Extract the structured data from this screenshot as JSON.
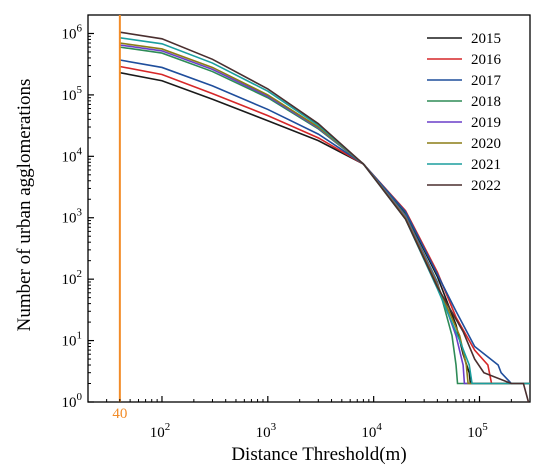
{
  "chart_data": {
    "type": "line",
    "xlabel": "Distance Threshold(m)",
    "ylabel": "Number of urban agglomerations",
    "x_scale": "log",
    "y_scale": "log",
    "xlim": [
      20,
      300000
    ],
    "ylim": [
      1,
      2000000
    ],
    "x_ticks": [
      {
        "value": 100,
        "base": "10",
        "exp": "2"
      },
      {
        "value": 1000,
        "base": "10",
        "exp": "3"
      },
      {
        "value": 10000,
        "base": "10",
        "exp": "4"
      },
      {
        "value": 100000,
        "base": "10",
        "exp": "5"
      }
    ],
    "y_ticks": [
      {
        "value": 1,
        "base": "10",
        "exp": "0"
      },
      {
        "value": 10,
        "base": "10",
        "exp": "1"
      },
      {
        "value": 100,
        "base": "10",
        "exp": "2"
      },
      {
        "value": 1000,
        "base": "10",
        "exp": "3"
      },
      {
        "value": 10000,
        "base": "10",
        "exp": "4"
      },
      {
        "value": 100000,
        "base": "10",
        "exp": "5"
      },
      {
        "value": 1000000,
        "base": "10",
        "exp": "6"
      }
    ],
    "marker": {
      "x": 40,
      "label": "40",
      "color": "#f28c28"
    },
    "grid": false,
    "legend_position": "top-right",
    "series": [
      {
        "name": "2015",
        "color": "#1a1a1a",
        "points": [
          [
            40,
            230000
          ],
          [
            100,
            170000
          ],
          [
            300,
            85000
          ],
          [
            1000,
            38000
          ],
          [
            3000,
            18000
          ],
          [
            8000,
            7500
          ],
          [
            20000,
            1200
          ],
          [
            40000,
            110
          ],
          [
            60000,
            18
          ],
          [
            70000,
            6
          ],
          [
            80000,
            3
          ],
          [
            82000,
            2
          ],
          [
            300000,
            2
          ]
        ]
      },
      {
        "name": "2016",
        "color": "#d62728",
        "points": [
          [
            40,
            290000
          ],
          [
            100,
            215000
          ],
          [
            300,
            105000
          ],
          [
            1000,
            46000
          ],
          [
            3000,
            20000
          ],
          [
            8000,
            7500
          ],
          [
            20000,
            1300
          ],
          [
            40000,
            130
          ],
          [
            60000,
            24
          ],
          [
            90000,
            7
          ],
          [
            120000,
            4
          ],
          [
            130000,
            2
          ],
          [
            300000,
            2
          ]
        ]
      },
      {
        "name": "2017",
        "color": "#1f4e9c",
        "points": [
          [
            40,
            370000
          ],
          [
            100,
            280000
          ],
          [
            300,
            140000
          ],
          [
            1000,
            58000
          ],
          [
            3000,
            23000
          ],
          [
            8000,
            7500
          ],
          [
            20000,
            1250
          ],
          [
            40000,
            120
          ],
          [
            60000,
            30
          ],
          [
            90000,
            8
          ],
          [
            150000,
            4
          ],
          [
            160000,
            3
          ],
          [
            200000,
            2
          ],
          [
            300000,
            2
          ]
        ]
      },
      {
        "name": "2018",
        "color": "#2e8b57",
        "points": [
          [
            40,
            600000
          ],
          [
            100,
            480000
          ],
          [
            300,
            240000
          ],
          [
            1000,
            90000
          ],
          [
            3000,
            28000
          ],
          [
            8000,
            7500
          ],
          [
            20000,
            1100
          ],
          [
            40000,
            90
          ],
          [
            55000,
            12
          ],
          [
            60000,
            4
          ],
          [
            62000,
            2
          ],
          [
            300000,
            2
          ]
        ]
      },
      {
        "name": "2019",
        "color": "#6a3fc9",
        "points": [
          [
            40,
            650000
          ],
          [
            100,
            520000
          ],
          [
            300,
            260000
          ],
          [
            1000,
            95000
          ],
          [
            3000,
            29000
          ],
          [
            8000,
            7500
          ],
          [
            20000,
            1050
          ],
          [
            40000,
            85
          ],
          [
            60000,
            12
          ],
          [
            70000,
            4
          ],
          [
            72000,
            2
          ],
          [
            300000,
            2
          ]
        ]
      },
      {
        "name": "2020",
        "color": "#8b7d16",
        "points": [
          [
            40,
            700000
          ],
          [
            100,
            560000
          ],
          [
            300,
            280000
          ],
          [
            1000,
            100000
          ],
          [
            3000,
            30000
          ],
          [
            8000,
            7500
          ],
          [
            20000,
            1000
          ],
          [
            40000,
            80
          ],
          [
            65000,
            12
          ],
          [
            75000,
            4
          ],
          [
            78000,
            2
          ],
          [
            300000,
            2
          ]
        ]
      },
      {
        "name": "2021",
        "color": "#1b9e9e",
        "points": [
          [
            40,
            850000
          ],
          [
            100,
            680000
          ],
          [
            300,
            330000
          ],
          [
            1000,
            115000
          ],
          [
            3000,
            32000
          ],
          [
            8000,
            7500
          ],
          [
            20000,
            950
          ],
          [
            40000,
            70
          ],
          [
            65000,
            10
          ],
          [
            80000,
            4
          ],
          [
            85000,
            2
          ],
          [
            300000,
            2
          ]
        ]
      },
      {
        "name": "2022",
        "color": "#4a2f2f",
        "points": [
          [
            40,
            1050000
          ],
          [
            100,
            820000
          ],
          [
            300,
            380000
          ],
          [
            1000,
            125000
          ],
          [
            3000,
            34000
          ],
          [
            8000,
            7500
          ],
          [
            20000,
            950
          ],
          [
            40000,
            75
          ],
          [
            70000,
            14
          ],
          [
            90000,
            5
          ],
          [
            110000,
            3
          ],
          [
            200000,
            2
          ],
          [
            260000,
            2
          ],
          [
            290000,
            1
          ]
        ]
      }
    ]
  }
}
